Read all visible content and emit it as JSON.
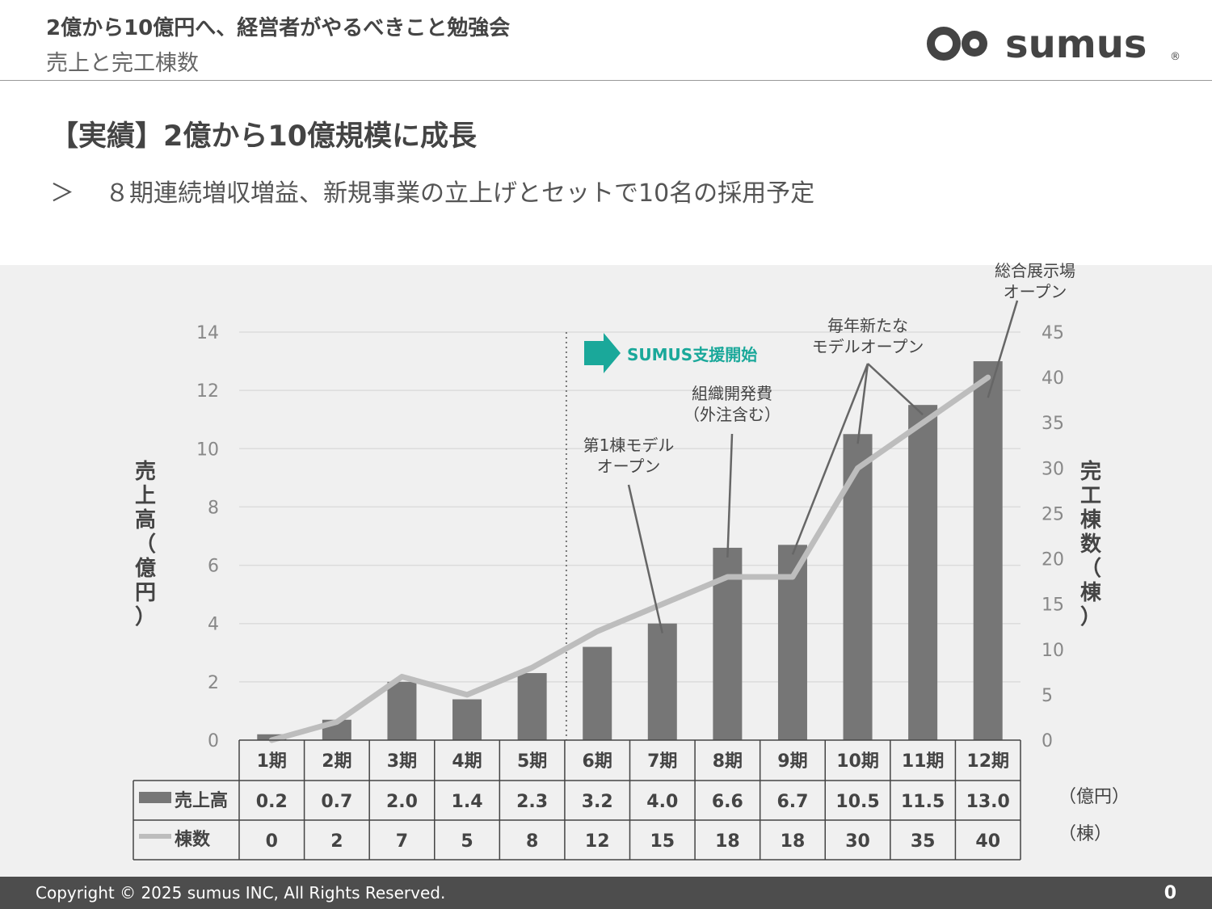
{
  "header": {
    "title": "2億から10億円へ、経営者がやるべきこと勉強会",
    "subtitle": "売上と完工棟数",
    "logo_text": "sumus",
    "logo_mark": "®"
  },
  "heading": "【実績】2億から10億規模に成長",
  "bullet": {
    "mark": "＞",
    "text": "８期連続増収増益、新規事業の立上げとセットで10名の採用予定"
  },
  "chart_data": {
    "type": "bar",
    "categories": [
      "1期",
      "2期",
      "3期",
      "4期",
      "5期",
      "6期",
      "7期",
      "8期",
      "9期",
      "10期",
      "11期",
      "12期"
    ],
    "series": [
      {
        "name": "売上高",
        "type": "bar",
        "axis": "left",
        "values": [
          0.2,
          0.7,
          2.0,
          1.4,
          2.3,
          3.2,
          4.0,
          6.6,
          6.7,
          10.5,
          11.5,
          13.0
        ],
        "labels": [
          "0.2",
          "0.7",
          "2.0",
          "1.4",
          "2.3",
          "3.2",
          "4.0",
          "6.6",
          "6.7",
          "10.5",
          "11.5",
          "13.0"
        ],
        "unit": "（億円）",
        "color": "#767676"
      },
      {
        "name": "棟数",
        "type": "line",
        "axis": "right",
        "values": [
          0,
          2,
          7,
          5,
          8,
          12,
          15,
          18,
          18,
          30,
          35,
          40
        ],
        "unit": "（棟）",
        "color": "#bdbdbd"
      }
    ],
    "ylabel_left": "売上高（億円）",
    "ylabel_right": "完工棟数（棟）",
    "ylim_left": [
      0,
      14
    ],
    "yticks_left": [
      0,
      2,
      4,
      6,
      8,
      10,
      12,
      14
    ],
    "ylim_right": [
      0,
      45
    ],
    "yticks_right": [
      0,
      5,
      10,
      15,
      20,
      25,
      30,
      35,
      40,
      45
    ],
    "grid": true,
    "legend": "data-table",
    "support_marker": {
      "after_category": "5期",
      "label": "SUMUS支援開始",
      "color": "#1aa89a"
    },
    "annotations": [
      {
        "lines": [
          "第1棟モデル",
          "オープン"
        ],
        "targets": [
          "7期"
        ]
      },
      {
        "lines": [
          "組織開発費",
          "（外注含む）"
        ],
        "targets": [
          "8期"
        ]
      },
      {
        "lines": [
          "毎年新たな",
          "モデルオープン"
        ],
        "targets": [
          "9期",
          "10期",
          "11期"
        ]
      },
      {
        "lines": [
          "総合展示場",
          "オープン"
        ],
        "targets": [
          "12期"
        ]
      }
    ]
  },
  "footer": {
    "copyright": "Copyright © 2025 sumus INC, All Rights Reserved.",
    "page_number": "0"
  }
}
